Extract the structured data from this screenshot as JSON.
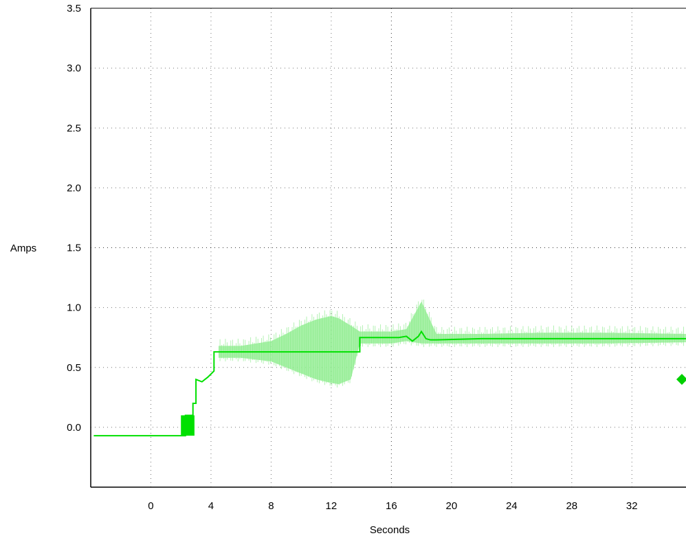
{
  "chart_data": {
    "type": "line",
    "title": "",
    "xlabel": "Seconds",
    "ylabel": "Amps",
    "xlim": [
      -4,
      35.6
    ],
    "ylim": [
      -0.5,
      3.5
    ],
    "x_ticks": [
      0,
      4,
      8,
      12,
      16,
      20,
      24,
      28,
      32
    ],
    "y_ticks": [
      0.0,
      0.5,
      1.0,
      1.5,
      2.0,
      2.5,
      3.0,
      3.5
    ],
    "x_tick_labels": [
      "0",
      "4",
      "8",
      "12",
      "16",
      "20",
      "24",
      "28",
      "32"
    ],
    "y_tick_labels": [
      "0.0",
      "0.5",
      "1.0",
      "1.5",
      "2.0",
      "2.5",
      "3.0",
      "3.5"
    ],
    "grid": true,
    "series": [
      {
        "color": "#00e000",
        "x": [
          -3.8,
          2.3,
          2.3,
          2.8,
          2.8,
          3.0,
          3.0,
          3.4,
          3.8,
          4.2,
          4.2,
          4.5,
          8,
          10,
          12,
          13.9,
          13.9,
          16.5,
          17.0,
          17.4,
          17.6,
          17.8,
          18.0,
          18.3,
          18.6,
          19.0,
          22,
          26,
          30,
          35.6
        ],
        "y": [
          -0.07,
          -0.07,
          0.1,
          0.1,
          0.2,
          0.2,
          0.4,
          0.38,
          0.42,
          0.47,
          0.63,
          0.63,
          0.63,
          0.63,
          0.63,
          0.63,
          0.75,
          0.75,
          0.76,
          0.72,
          0.74,
          0.76,
          0.8,
          0.74,
          0.73,
          0.73,
          0.74,
          0.74,
          0.74,
          0.74
        ]
      },
      {
        "color": "#9ef09e",
        "x_upper": [
          4.5,
          6,
          8,
          9,
          10,
          11,
          12,
          12.5,
          13.3,
          13.9,
          15,
          16,
          17,
          18,
          19,
          22,
          26,
          30,
          35.6
        ],
        "upper": [
          0.68,
          0.68,
          0.72,
          0.78,
          0.85,
          0.9,
          0.93,
          0.91,
          0.85,
          0.8,
          0.8,
          0.8,
          0.82,
          1.05,
          0.78,
          0.78,
          0.79,
          0.79,
          0.78
        ],
        "lower": [
          0.58,
          0.58,
          0.55,
          0.5,
          0.45,
          0.4,
          0.37,
          0.36,
          0.4,
          0.7,
          0.7,
          0.7,
          0.72,
          0.7,
          0.7,
          0.7,
          0.7,
          0.7,
          0.71
        ]
      }
    ],
    "marker": {
      "shape": "diamond",
      "y": 0.4,
      "color": "#00d000"
    }
  }
}
